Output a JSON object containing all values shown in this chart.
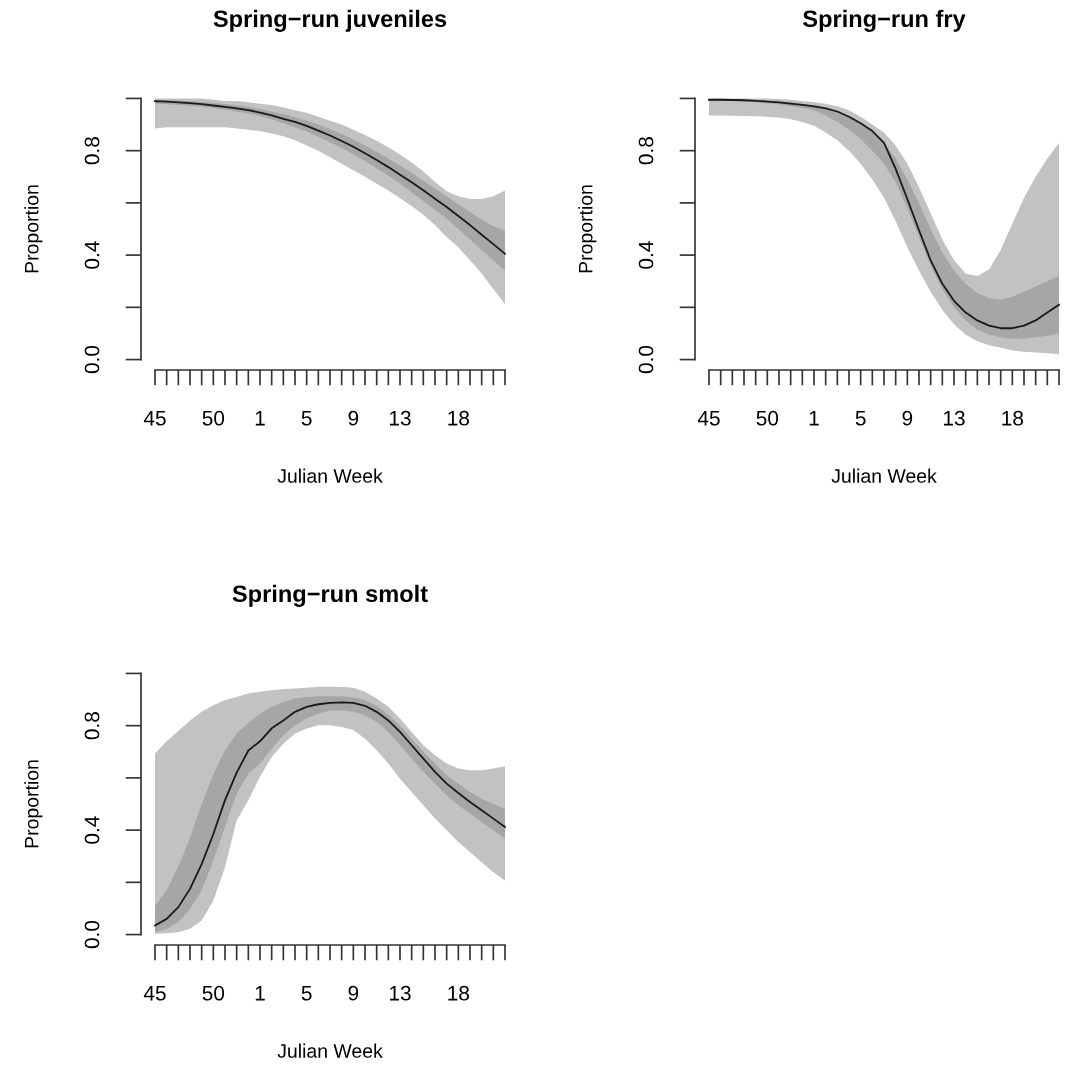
{
  "chart_data": [
    {
      "type": "line",
      "title": "Spring−run juveniles",
      "xlabel": "Julian Week",
      "ylabel": "Proportion",
      "categories": [
        "45",
        null,
        null,
        null,
        null,
        "50",
        null,
        null,
        null,
        "1",
        null,
        null,
        null,
        "5",
        null,
        null,
        null,
        "9",
        null,
        null,
        null,
        "13",
        null,
        null,
        null,
        null,
        "18",
        null,
        null,
        null,
        null
      ],
      "ylim": [
        0,
        1
      ],
      "yticks": [
        {
          "value": 0,
          "label": "0.0"
        },
        {
          "value": 0.2,
          "label": null
        },
        {
          "value": 0.4,
          "label": "0.4"
        },
        {
          "value": 0.6,
          "label": null
        },
        {
          "value": 0.8,
          "label": "0.8"
        },
        {
          "value": 1.0,
          "label": null
        }
      ],
      "grid": false,
      "legend": false,
      "series": [
        {
          "color": "#1a1a1a",
          "values": [
            0.99,
            0.988,
            0.985,
            0.982,
            0.978,
            0.973,
            0.968,
            0.962,
            0.955,
            0.946,
            0.935,
            0.922,
            0.91,
            0.895,
            0.877,
            0.858,
            0.837,
            0.815,
            0.79,
            0.764,
            0.737,
            0.708,
            0.679,
            0.648,
            0.616,
            0.584,
            0.55,
            0.515,
            0.478,
            0.442,
            0.405
          ],
          "upper": [
            1.0,
            1.0,
            1.0,
            1.0,
            1.0,
            0.995,
            0.99,
            0.99,
            0.985,
            0.98,
            0.975,
            0.965,
            0.955,
            0.945,
            0.93,
            0.915,
            0.9,
            0.88,
            0.86,
            0.838,
            0.813,
            0.785,
            0.755,
            0.72,
            0.68,
            0.645,
            0.625,
            0.615,
            0.615,
            0.625,
            0.647
          ],
          "lower": [
            0.885,
            0.89,
            0.89,
            0.89,
            0.89,
            0.89,
            0.89,
            0.885,
            0.88,
            0.875,
            0.866,
            0.855,
            0.84,
            0.82,
            0.8,
            0.775,
            0.75,
            0.725,
            0.7,
            0.673,
            0.647,
            0.618,
            0.588,
            0.555,
            0.515,
            0.469,
            0.43,
            0.38,
            0.33,
            0.27,
            0.213
          ]
        },
        {
          "color": "#1a1a1a",
          "values": [
            null,
            null,
            null,
            null,
            null,
            null,
            null,
            null,
            null,
            null,
            null,
            null,
            null,
            null,
            null,
            null,
            null,
            null,
            null,
            null,
            null,
            null,
            null,
            null,
            null,
            null,
            null,
            null,
            null,
            null,
            null
          ],
          "upper": [
            0.995,
            0.994,
            0.992,
            0.99,
            0.987,
            0.983,
            0.979,
            0.974,
            0.968,
            0.96,
            0.95,
            0.94,
            0.928,
            0.915,
            0.9,
            0.883,
            0.864,
            0.843,
            0.82,
            0.795,
            0.77,
            0.743,
            0.715,
            0.685,
            0.655,
            0.625,
            0.595,
            0.565,
            0.535,
            0.51,
            0.494
          ],
          "lower": [
            0.98,
            0.978,
            0.975,
            0.972,
            0.968,
            0.963,
            0.957,
            0.95,
            0.942,
            0.932,
            0.92,
            0.905,
            0.89,
            0.873,
            0.853,
            0.832,
            0.81,
            0.786,
            0.76,
            0.733,
            0.705,
            0.673,
            0.64,
            0.607,
            0.573,
            0.54,
            0.5,
            0.46,
            0.42,
            0.38,
            0.34
          ]
        }
      ]
    },
    {
      "type": "line",
      "title": "Spring−run fry",
      "xlabel": "Julian Week",
      "ylabel": "Proportion",
      "categories": [
        "45",
        null,
        null,
        null,
        null,
        "50",
        null,
        null,
        null,
        "1",
        null,
        null,
        null,
        "5",
        null,
        null,
        null,
        "9",
        null,
        null,
        null,
        "13",
        null,
        null,
        null,
        null,
        "18",
        null,
        null,
        null,
        null
      ],
      "ylim": [
        0,
        1
      ],
      "yticks": [
        {
          "value": 0,
          "label": "0.0"
        },
        {
          "value": 0.2,
          "label": null
        },
        {
          "value": 0.4,
          "label": "0.4"
        },
        {
          "value": 0.6,
          "label": null
        },
        {
          "value": 0.8,
          "label": "0.8"
        },
        {
          "value": 1.0,
          "label": null
        }
      ],
      "grid": false,
      "legend": false,
      "series": [
        {
          "color": "#1a1a1a",
          "values": [
            0.995,
            0.995,
            0.994,
            0.993,
            0.991,
            0.988,
            0.985,
            0.98,
            0.975,
            0.97,
            0.962,
            0.95,
            0.93,
            0.905,
            0.875,
            0.83,
            0.73,
            0.615,
            0.495,
            0.38,
            0.29,
            0.225,
            0.18,
            0.15,
            0.13,
            0.12,
            0.12,
            0.13,
            0.15,
            0.18,
            0.21
          ],
          "upper": [
            1.0,
            1.0,
            1.0,
            1.0,
            1.0,
            1.0,
            0.998,
            0.995,
            0.99,
            0.985,
            0.98,
            0.97,
            0.955,
            0.93,
            0.9,
            0.87,
            0.82,
            0.75,
            0.66,
            0.56,
            0.46,
            0.38,
            0.33,
            0.32,
            0.345,
            0.42,
            0.52,
            0.62,
            0.7,
            0.77,
            0.83
          ],
          "lower": [
            0.935,
            0.935,
            0.934,
            0.933,
            0.932,
            0.93,
            0.927,
            0.92,
            0.91,
            0.895,
            0.87,
            0.84,
            0.8,
            0.75,
            0.69,
            0.62,
            0.53,
            0.43,
            0.34,
            0.26,
            0.19,
            0.135,
            0.095,
            0.07,
            0.055,
            0.045,
            0.035,
            0.03,
            0.027,
            0.024,
            0.02
          ]
        },
        {
          "color": "#1a1a1a",
          "values": [
            null,
            null,
            null,
            null,
            null,
            null,
            null,
            null,
            null,
            null,
            null,
            null,
            null,
            null,
            null,
            null,
            null,
            null,
            null,
            null,
            null,
            null,
            null,
            null,
            null,
            null,
            null,
            null,
            null,
            null,
            null
          ],
          "upper": [
            0.998,
            0.998,
            0.997,
            0.996,
            0.995,
            0.993,
            0.99,
            0.986,
            0.98,
            0.975,
            0.965,
            0.95,
            0.93,
            0.905,
            0.87,
            0.83,
            0.77,
            0.69,
            0.6,
            0.5,
            0.41,
            0.34,
            0.29,
            0.255,
            0.235,
            0.23,
            0.24,
            0.26,
            0.28,
            0.3,
            0.32
          ],
          "lower": [
            0.99,
            0.99,
            0.99,
            0.988,
            0.985,
            0.982,
            0.977,
            0.97,
            0.963,
            0.955,
            0.935,
            0.91,
            0.88,
            0.845,
            0.8,
            0.75,
            0.68,
            0.58,
            0.47,
            0.36,
            0.27,
            0.2,
            0.15,
            0.115,
            0.095,
            0.085,
            0.08,
            0.08,
            0.085,
            0.09,
            0.1
          ]
        }
      ]
    },
    {
      "type": "line",
      "title": "Spring−run smolt",
      "xlabel": "Julian Week",
      "ylabel": "Proportion",
      "categories": [
        "45",
        null,
        null,
        null,
        null,
        "50",
        null,
        null,
        null,
        "1",
        null,
        null,
        null,
        "5",
        null,
        null,
        null,
        "9",
        null,
        null,
        null,
        "13",
        null,
        null,
        null,
        null,
        "18",
        null,
        null,
        null,
        null
      ],
      "ylim": [
        0,
        1
      ],
      "yticks": [
        {
          "value": 0,
          "label": "0.0"
        },
        {
          "value": 0.2,
          "label": null
        },
        {
          "value": 0.4,
          "label": "0.4"
        },
        {
          "value": 0.6,
          "label": null
        },
        {
          "value": 0.8,
          "label": "0.8"
        },
        {
          "value": 1.0,
          "label": null
        }
      ],
      "grid": false,
      "legend": false,
      "series": [
        {
          "color": "#1a1a1a",
          "values": [
            0.035,
            0.06,
            0.105,
            0.175,
            0.27,
            0.385,
            0.515,
            0.62,
            0.705,
            0.74,
            0.79,
            0.82,
            0.853,
            0.872,
            0.882,
            0.887,
            0.889,
            0.887,
            0.876,
            0.853,
            0.82,
            0.776,
            0.725,
            0.674,
            0.623,
            0.578,
            0.542,
            0.508,
            0.476,
            0.444,
            0.412
          ],
          "upper": [
            0.693,
            0.74,
            0.78,
            0.82,
            0.853,
            0.878,
            0.898,
            0.91,
            0.923,
            0.93,
            0.936,
            0.94,
            0.942,
            0.945,
            0.949,
            0.949,
            0.948,
            0.945,
            0.93,
            0.904,
            0.872,
            0.827,
            0.776,
            0.725,
            0.687,
            0.655,
            0.636,
            0.629,
            0.629,
            0.636,
            0.645
          ],
          "lower": [
            0.003,
            0.005,
            0.009,
            0.022,
            0.054,
            0.13,
            0.258,
            0.437,
            0.514,
            0.604,
            0.68,
            0.731,
            0.77,
            0.789,
            0.802,
            0.802,
            0.795,
            0.783,
            0.75,
            0.706,
            0.655,
            0.597,
            0.546,
            0.495,
            0.444,
            0.399,
            0.354,
            0.316,
            0.277,
            0.239,
            0.207
          ]
        },
        {
          "color": "#1a1a1a",
          "values": [
            null,
            null,
            null,
            null,
            null,
            null,
            null,
            null,
            null,
            null,
            null,
            null,
            null,
            null,
            null,
            null,
            null,
            null,
            null,
            null,
            null,
            null,
            null,
            null,
            null,
            null,
            null,
            null,
            null,
            null,
            null
          ],
          "upper": [
            0.11,
            0.17,
            0.26,
            0.37,
            0.5,
            0.615,
            0.705,
            0.77,
            0.81,
            0.845,
            0.872,
            0.89,
            0.904,
            0.91,
            0.913,
            0.913,
            0.913,
            0.908,
            0.898,
            0.876,
            0.843,
            0.8,
            0.75,
            0.7,
            0.655,
            0.61,
            0.578,
            0.546,
            0.52,
            0.5,
            0.482
          ],
          "lower": [
            0.009,
            0.022,
            0.047,
            0.098,
            0.17,
            0.284,
            0.412,
            0.54,
            0.616,
            0.655,
            0.712,
            0.763,
            0.802,
            0.827,
            0.847,
            0.857,
            0.859,
            0.853,
            0.84,
            0.815,
            0.776,
            0.725,
            0.674,
            0.623,
            0.578,
            0.533,
            0.495,
            0.463,
            0.431,
            0.399,
            0.367
          ]
        }
      ]
    }
  ]
}
